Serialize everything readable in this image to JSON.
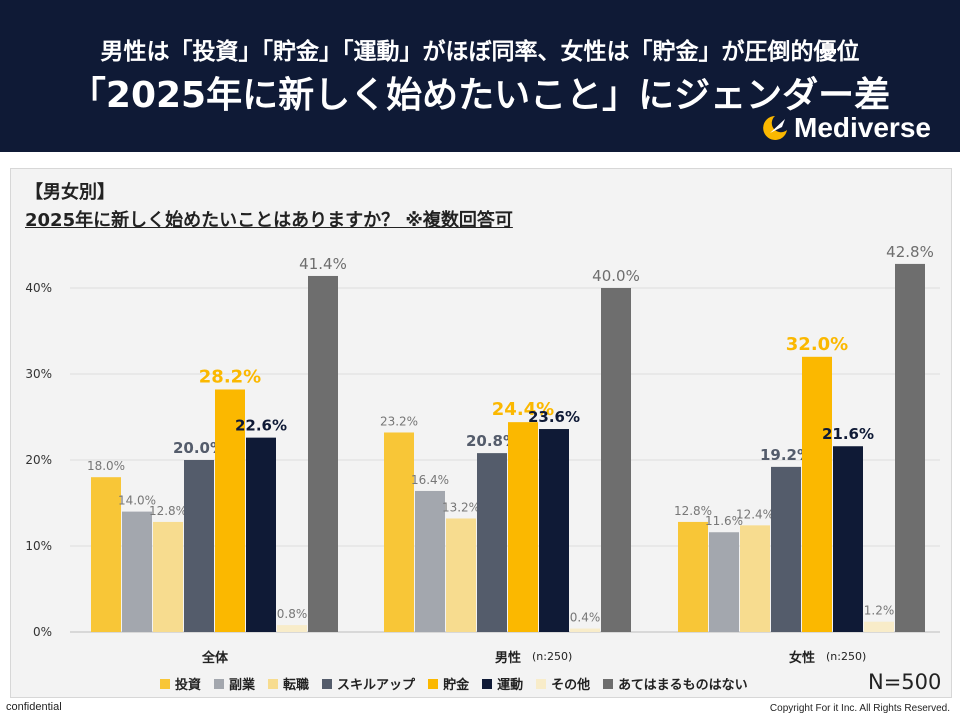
{
  "header": {
    "headline_1": "男性は「投資」「貯金」「運動」がほぼ同率、女性は「貯金」が圧倒的優位",
    "headline_2": "「2025年に新しく始めたいこと」にジェンダー差",
    "logo_text": "Mediverse",
    "logo_icon": "crescent-arrow-icon"
  },
  "chart_title": {
    "line1": "【男女別】",
    "line2": "2025年に新しく始めたいことはありますか？ ※複数回答可"
  },
  "colors": {
    "header_bg": "#0f1a36",
    "panel_bg": "#f3f3f3"
  },
  "chart_data": {
    "type": "bar",
    "categories": [
      "全体",
      "男性",
      "女性"
    ],
    "category_notes": [
      "",
      "(n:250)",
      "(n:250)"
    ],
    "ylim": [
      0,
      45
    ],
    "yticks": [
      "0%",
      "10%",
      "20%",
      "30%",
      "40%"
    ],
    "grid": true,
    "legend_position": "bottom",
    "series": [
      {
        "name": "投資",
        "color": "#f8c637",
        "values": [
          18.0,
          23.2,
          12.8
        ]
      },
      {
        "name": "副業",
        "color": "#a3a7ae",
        "values": [
          14.0,
          16.4,
          11.6
        ]
      },
      {
        "name": "転職",
        "color": "#f7dc8f",
        "values": [
          12.8,
          13.2,
          12.4
        ]
      },
      {
        "name": "スキルアップ",
        "color": "#545c6b",
        "values": [
          20.0,
          20.8,
          19.2
        ]
      },
      {
        "name": "貯金",
        "color": "#fbb800",
        "values": [
          28.2,
          24.4,
          32.0
        ]
      },
      {
        "name": "運動",
        "color": "#0f1a36",
        "values": [
          22.6,
          23.6,
          21.6
        ]
      },
      {
        "name": "その他",
        "color": "#f8ecc9",
        "values": [
          0.8,
          0.4,
          1.2
        ]
      },
      {
        "name": "あてはまるものはない",
        "color": "#6e6e6e",
        "values": [
          41.4,
          40.0,
          42.8
        ]
      }
    ],
    "value_labels": [
      [
        "18.0%",
        "23.2%",
        "12.8%"
      ],
      [
        "14.0%",
        "16.4%",
        "11.6%"
      ],
      [
        "12.8%",
        "13.2%",
        "12.4%"
      ],
      [
        "20.0%",
        "20.8%",
        "19.2%"
      ],
      [
        "28.2%",
        "24.4%",
        "32.0%"
      ],
      [
        "22.6%",
        "23.6%",
        "21.6%"
      ],
      [
        "0.8%",
        "0.4%",
        "1.2%"
      ],
      [
        "41.4%",
        "40.0%",
        "42.8%"
      ]
    ]
  },
  "n_label": "N=500",
  "footer": {
    "confidential": "confidential",
    "copyright": "Copyright For it Inc. All Rights Reserved."
  }
}
